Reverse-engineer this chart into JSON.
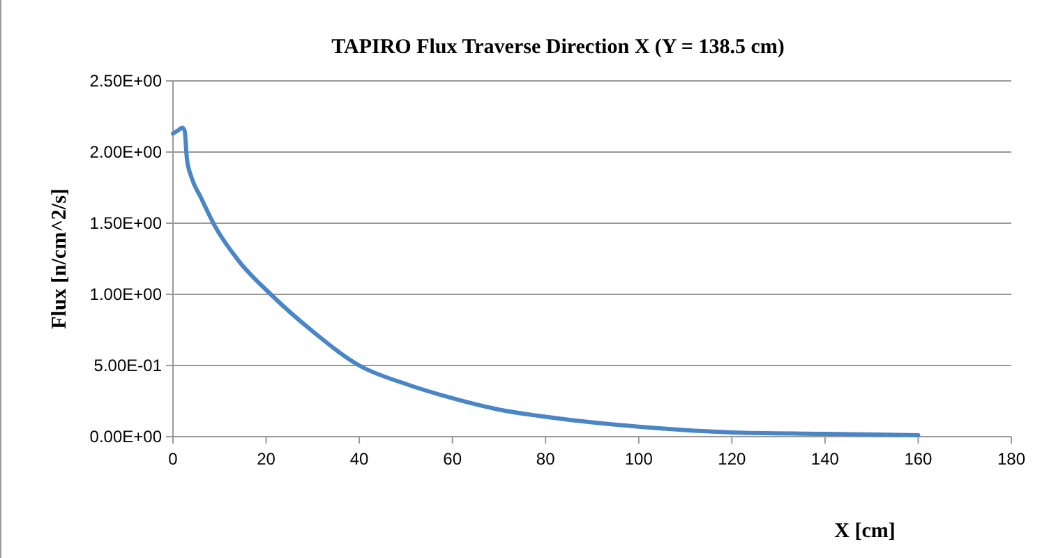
{
  "chart_data": {
    "type": "line",
    "title": "TAPIRO Flux Traverse  Direction X (Y = 138.5 cm)",
    "xlabel": "X [cm]",
    "ylabel": "Flux [n/cm^2/s]",
    "series": [
      {
        "color": "#4a86c6",
        "x": [
          0,
          1,
          2,
          2.5,
          3,
          4,
          6,
          9,
          14,
          21,
          30,
          40,
          50,
          60,
          70,
          80,
          90,
          100,
          120,
          140,
          160
        ],
        "values": [
          2.13,
          2.15,
          2.17,
          2.15,
          1.95,
          1.82,
          1.68,
          1.48,
          1.24,
          1.0,
          0.74,
          0.5,
          0.37,
          0.27,
          0.19,
          0.14,
          0.1,
          0.07,
          0.03,
          0.02,
          0.01
        ]
      }
    ],
    "xlim": [
      0,
      180
    ],
    "xticks": [
      0,
      20,
      40,
      60,
      80,
      100,
      120,
      140,
      160,
      180
    ],
    "ylim": [
      0,
      2.5
    ],
    "yticks": [
      {
        "value": 0,
        "label": "0.00E+00"
      },
      {
        "value": 0.5,
        "label": "5.00E-01"
      },
      {
        "value": 1,
        "label": "1.00E+00"
      },
      {
        "value": 1.5,
        "label": "1.50E+00"
      },
      {
        "value": 2,
        "label": "2.00E+00"
      },
      {
        "value": 2.5,
        "label": "2.50E+00"
      }
    ],
    "grid": "y",
    "marker": "none",
    "line_style": "solid"
  }
}
